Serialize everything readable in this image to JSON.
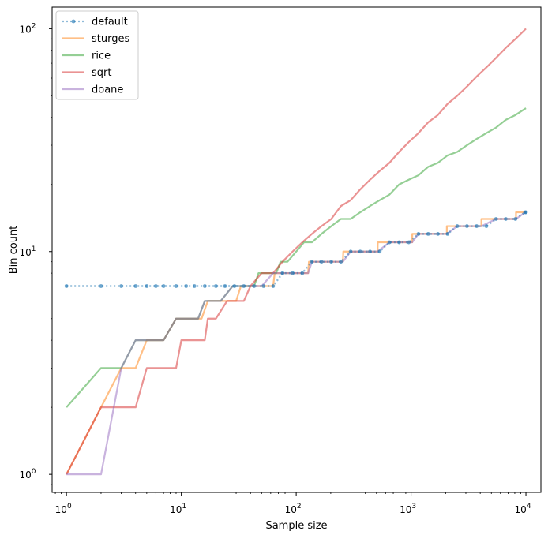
{
  "chart_data": {
    "type": "line",
    "title": "",
    "xlabel": "Sample size",
    "ylabel": "Bin count",
    "xscale": "log",
    "yscale": "log",
    "xlim": [
      0.75,
      13500
    ],
    "ylim": [
      0.83,
      125
    ],
    "grid": false,
    "legend_position": "top-left",
    "x_ticks": [
      {
        "value": 1,
        "base": "10",
        "exp": "0"
      },
      {
        "value": 10,
        "base": "10",
        "exp": "1"
      },
      {
        "value": 100,
        "base": "10",
        "exp": "2"
      },
      {
        "value": 1000,
        "base": "10",
        "exp": "3"
      },
      {
        "value": 10000,
        "base": "10",
        "exp": "4"
      }
    ],
    "y_ticks": [
      {
        "value": 1,
        "base": "10",
        "exp": "0"
      },
      {
        "value": 10,
        "base": "10",
        "exp": "1"
      },
      {
        "value": 100,
        "base": "10",
        "exp": "2"
      }
    ],
    "series": [
      {
        "name": "default",
        "color": "#1f77b4",
        "style": "dotted-markers",
        "points": [
          [
            1,
            7
          ],
          [
            2,
            7
          ],
          [
            3,
            7
          ],
          [
            4,
            7
          ],
          [
            5,
            7
          ],
          [
            6,
            7
          ],
          [
            7,
            7
          ],
          [
            9,
            7
          ],
          [
            11,
            7
          ],
          [
            13,
            7
          ],
          [
            16,
            7
          ],
          [
            20,
            7
          ],
          [
            24,
            7
          ],
          [
            29,
            7
          ],
          [
            35,
            7
          ],
          [
            43,
            7
          ],
          [
            52,
            7
          ],
          [
            63,
            7
          ],
          [
            76,
            8
          ],
          [
            93,
            8
          ],
          [
            113,
            8
          ],
          [
            137,
            9
          ],
          [
            166,
            9
          ],
          [
            202,
            9
          ],
          [
            245,
            9
          ],
          [
            298,
            10
          ],
          [
            361,
            10
          ],
          [
            439,
            10
          ],
          [
            533,
            10
          ],
          [
            648,
            11
          ],
          [
            787,
            11
          ],
          [
            955,
            11
          ],
          [
            1160,
            12
          ],
          [
            1409,
            12
          ],
          [
            1711,
            12
          ],
          [
            2078,
            12
          ],
          [
            2524,
            13
          ],
          [
            3066,
            13
          ],
          [
            3724,
            13
          ],
          [
            4523,
            13
          ],
          [
            5494,
            14
          ],
          [
            6673,
            14
          ],
          [
            8105,
            14
          ],
          [
            9844,
            15
          ],
          [
            10000,
            15
          ]
        ]
      },
      {
        "name": "sturges",
        "color": "#ff7f0e",
        "style": "line",
        "points": [
          [
            1,
            1
          ],
          [
            2,
            2
          ],
          [
            3,
            3
          ],
          [
            4,
            3
          ],
          [
            5,
            4
          ],
          [
            7,
            4
          ],
          [
            9,
            5
          ],
          [
            15,
            5
          ],
          [
            17,
            6
          ],
          [
            30,
            6
          ],
          [
            33,
            7
          ],
          [
            63,
            7
          ],
          [
            65,
            8
          ],
          [
            127,
            8
          ],
          [
            129,
            9
          ],
          [
            255,
            9
          ],
          [
            257,
            10
          ],
          [
            511,
            10
          ],
          [
            513,
            11
          ],
          [
            1023,
            11
          ],
          [
            1025,
            12
          ],
          [
            2047,
            12
          ],
          [
            2049,
            13
          ],
          [
            4095,
            13
          ],
          [
            4097,
            14
          ],
          [
            8191,
            14
          ],
          [
            8193,
            15
          ],
          [
            10000,
            15
          ]
        ]
      },
      {
        "name": "rice",
        "color": "#2ca02c",
        "style": "line",
        "points": [
          [
            1,
            2
          ],
          [
            2,
            3
          ],
          [
            3,
            3
          ],
          [
            4,
            4
          ],
          [
            7,
            4
          ],
          [
            9,
            5
          ],
          [
            14,
            5
          ],
          [
            16,
            6
          ],
          [
            22,
            6
          ],
          [
            28,
            7
          ],
          [
            43,
            7
          ],
          [
            47,
            8
          ],
          [
            67,
            8
          ],
          [
            73,
            9
          ],
          [
            84,
            9
          ],
          [
            100,
            10
          ],
          [
            117,
            11
          ],
          [
            137,
            11
          ],
          [
            166,
            12
          ],
          [
            202,
            13
          ],
          [
            245,
            14
          ],
          [
            298,
            14
          ],
          [
            361,
            15
          ],
          [
            439,
            16
          ],
          [
            533,
            17
          ],
          [
            648,
            18
          ],
          [
            787,
            20
          ],
          [
            955,
            21
          ],
          [
            1160,
            22
          ],
          [
            1409,
            24
          ],
          [
            1711,
            25
          ],
          [
            2078,
            27
          ],
          [
            2524,
            28
          ],
          [
            3066,
            30
          ],
          [
            3724,
            32
          ],
          [
            4523,
            34
          ],
          [
            5494,
            36
          ],
          [
            6673,
            39
          ],
          [
            8105,
            41
          ],
          [
            10000,
            44
          ]
        ]
      },
      {
        "name": "sqrt",
        "color": "#d62728",
        "style": "line",
        "points": [
          [
            1,
            1
          ],
          [
            2,
            2
          ],
          [
            4,
            2
          ],
          [
            5,
            3
          ],
          [
            9,
            3
          ],
          [
            10,
            4
          ],
          [
            16,
            4
          ],
          [
            17,
            5
          ],
          [
            20,
            5
          ],
          [
            25,
            6
          ],
          [
            35,
            6
          ],
          [
            40,
            7
          ],
          [
            50,
            8
          ],
          [
            63,
            8
          ],
          [
            76,
            9
          ],
          [
            93,
            10
          ],
          [
            113,
            11
          ],
          [
            137,
            12
          ],
          [
            166,
            13
          ],
          [
            202,
            14
          ],
          [
            245,
            16
          ],
          [
            298,
            17
          ],
          [
            361,
            19
          ],
          [
            439,
            21
          ],
          [
            533,
            23
          ],
          [
            648,
            25
          ],
          [
            787,
            28
          ],
          [
            955,
            31
          ],
          [
            1160,
            34
          ],
          [
            1409,
            38
          ],
          [
            1711,
            41
          ],
          [
            2078,
            46
          ],
          [
            2524,
            50
          ],
          [
            3066,
            55
          ],
          [
            3724,
            61
          ],
          [
            4523,
            67
          ],
          [
            5494,
            74
          ],
          [
            6673,
            82
          ],
          [
            8105,
            90
          ],
          [
            10000,
            100
          ]
        ]
      },
      {
        "name": "doane",
        "color": "#9467bd",
        "style": "line",
        "points": [
          [
            1,
            1
          ],
          [
            2,
            1
          ],
          [
            3,
            3
          ],
          [
            4,
            4
          ],
          [
            7,
            4
          ],
          [
            9,
            5
          ],
          [
            14,
            5
          ],
          [
            16,
            6
          ],
          [
            22,
            6
          ],
          [
            28,
            7
          ],
          [
            50,
            7
          ],
          [
            63,
            8
          ],
          [
            127,
            8
          ],
          [
            137,
            9
          ],
          [
            255,
            9
          ],
          [
            298,
            10
          ],
          [
            511,
            10
          ],
          [
            648,
            11
          ],
          [
            1023,
            11
          ],
          [
            1160,
            12
          ],
          [
            2047,
            12
          ],
          [
            2524,
            13
          ],
          [
            4095,
            13
          ],
          [
            5494,
            14
          ],
          [
            8191,
            14
          ],
          [
            9844,
            15
          ],
          [
            10000,
            15
          ]
        ]
      }
    ]
  }
}
